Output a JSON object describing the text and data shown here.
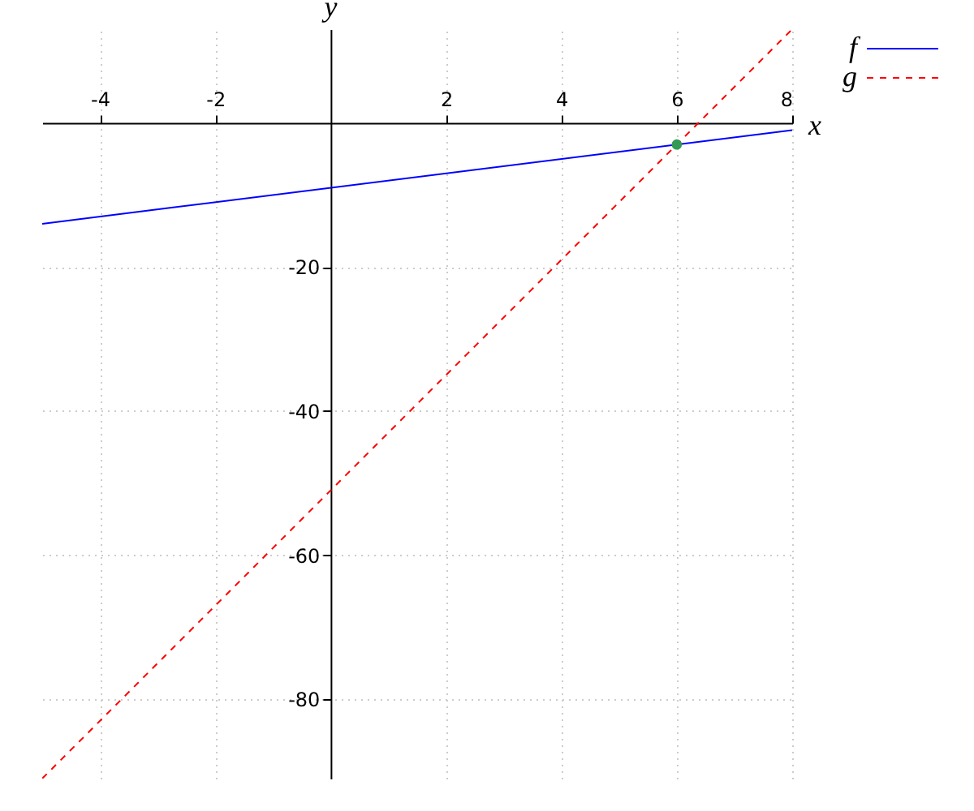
{
  "chart_data": {
    "type": "line",
    "xlabel": "x",
    "ylabel": "y",
    "x": [
      -5,
      8
    ],
    "xlim": [
      -5,
      8
    ],
    "ylim": [
      -91,
      13
    ],
    "xticks": [
      -4,
      -2,
      2,
      4,
      6,
      8
    ],
    "yticks": [
      -20,
      -40,
      -60,
      -80
    ],
    "series": [
      {
        "name": "f",
        "color": "#0000ff",
        "line_style": "solid",
        "values": [
          -14,
          -1
        ]
      },
      {
        "name": "g",
        "color": "#ff0000",
        "line_style": "dashed",
        "values": [
          -91,
          13
        ]
      },
      {
        "type": "scatter",
        "color": "#339955",
        "marker": "circle",
        "x": [
          6
        ],
        "values": [
          -3
        ]
      }
    ],
    "grid": true,
    "legend": "top right"
  }
}
